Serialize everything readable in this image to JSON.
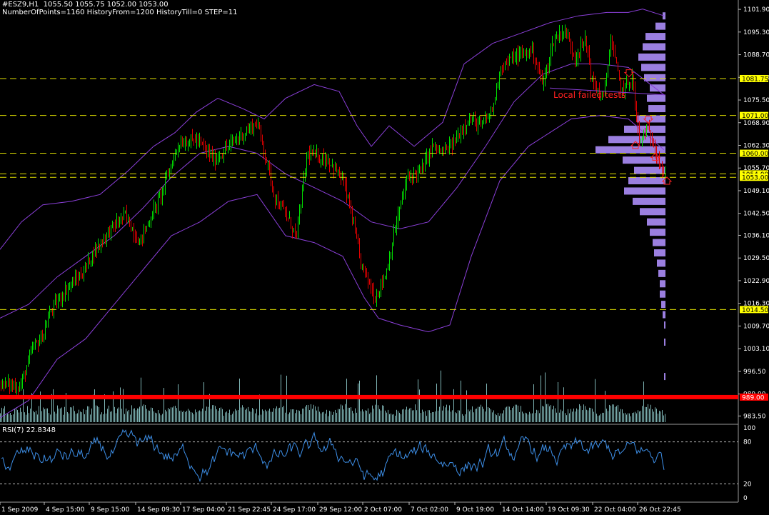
{
  "header": {
    "line1": "#ESZ9,H1  1055.50 1055.75 1052.00 1053.00",
    "line2": "NumberOfPoints=1160 HistoryFrom=1200 HistoryTill=0 STEP=11"
  },
  "rsi": {
    "label": "RSI(7) 22.8348",
    "ticks": [
      100,
      80,
      20,
      0
    ],
    "levels": [
      80,
      20
    ]
  },
  "annotation": {
    "text": "Local failed tests"
  },
  "colors": {
    "background": "#000000",
    "bull": "#00e000",
    "bear": "#e00000",
    "volume": "#7fb5b5",
    "profile": "#9b7fe0",
    "bands": "#8a3fd8",
    "rsi_line": "#3d8fe8",
    "level_line": "#e0e000",
    "support": "#ff0000"
  },
  "chart_data": {
    "type": "candlestick",
    "price_ticks": [
      "1101.90",
      "1095.30",
      "1088.70",
      "1082.10",
      "1075.50",
      "1068.90",
      "1062.30",
      "1055.70",
      "1049.10",
      "1042.50",
      "1036.10",
      "1029.50",
      "1022.90",
      "1016.30",
      "1009.70",
      "1003.10",
      "996.50",
      "989.90",
      "983.50"
    ],
    "ylim": [
      981.5,
      1104.0
    ],
    "date_ticks": [
      "1 Sep 2009",
      "4 Sep 15:00",
      "9 Sep 15:00",
      "14 Sep 09:30",
      "17 Sep 04:00",
      "21 Sep 22:45",
      "24 Sep 17:00",
      "29 Sep 12:00",
      "2 Oct 07:00",
      "7 Oct 02:00",
      "9 Oct 19:00",
      "14 Oct 14:00",
      "19 Oct 09:30",
      "22 Oct 04:00",
      "26 Oct 22:45"
    ],
    "level_lines": [
      {
        "value": 1081.75,
        "label": "1081.75"
      },
      {
        "value": 1071.0,
        "label": "1071.00"
      },
      {
        "value": 1060.0,
        "label": "1060.00"
      },
      {
        "value": 1054.0,
        "label": "1054.00"
      },
      {
        "value": 1053.0,
        "label": "1053.00"
      },
      {
        "value": 1014.5,
        "label": "1014.50"
      }
    ],
    "support_line": {
      "value": 989.0,
      "label": "989.00"
    },
    "path_points": [
      [
        0,
        993
      ],
      [
        28,
        992
      ],
      [
        45,
        1003
      ],
      [
        60,
        1007
      ],
      [
        70,
        1014
      ],
      [
        95,
        1021
      ],
      [
        115,
        1025
      ],
      [
        130,
        1031
      ],
      [
        155,
        1038
      ],
      [
        175,
        1042
      ],
      [
        195,
        1034
      ],
      [
        225,
        1048
      ],
      [
        250,
        1063
      ],
      [
        275,
        1064
      ],
      [
        300,
        1058
      ],
      [
        330,
        1064
      ],
      [
        360,
        1069
      ],
      [
        375,
        1056
      ],
      [
        385,
        1047
      ],
      [
        400,
        1042
      ],
      [
        415,
        1036
      ],
      [
        430,
        1060
      ],
      [
        460,
        1058
      ],
      [
        480,
        1052
      ],
      [
        490,
        1044
      ],
      [
        505,
        1028
      ],
      [
        525,
        1018
      ],
      [
        540,
        1025
      ],
      [
        555,
        1040
      ],
      [
        570,
        1053
      ],
      [
        590,
        1055
      ],
      [
        605,
        1062
      ],
      [
        620,
        1060
      ],
      [
        635,
        1063
      ],
      [
        655,
        1070
      ],
      [
        675,
        1068
      ],
      [
        690,
        1073
      ],
      [
        700,
        1085
      ],
      [
        720,
        1088
      ],
      [
        745,
        1090
      ],
      [
        760,
        1080
      ],
      [
        775,
        1093
      ],
      [
        790,
        1096
      ],
      [
        805,
        1088
      ],
      [
        820,
        1093
      ],
      [
        830,
        1080
      ],
      [
        845,
        1076
      ],
      [
        855,
        1093
      ],
      [
        870,
        1078
      ],
      [
        885,
        1082
      ],
      [
        895,
        1063
      ],
      [
        905,
        1067
      ],
      [
        915,
        1063
      ],
      [
        930,
        1053
      ]
    ],
    "bb_upper": [
      [
        0,
        1032
      ],
      [
        30,
        1040
      ],
      [
        60,
        1045
      ],
      [
        100,
        1046
      ],
      [
        140,
        1048
      ],
      [
        180,
        1055
      ],
      [
        215,
        1062
      ],
      [
        245,
        1066
      ],
      [
        275,
        1072
      ],
      [
        305,
        1076
      ],
      [
        340,
        1073
      ],
      [
        370,
        1070
      ],
      [
        400,
        1076
      ],
      [
        440,
        1080
      ],
      [
        475,
        1078
      ],
      [
        500,
        1068
      ],
      [
        520,
        1062
      ],
      [
        545,
        1068
      ],
      [
        580,
        1062
      ],
      [
        620,
        1069
      ],
      [
        650,
        1086
      ],
      [
        690,
        1092
      ],
      [
        730,
        1095
      ],
      [
        770,
        1098
      ],
      [
        810,
        1100
      ],
      [
        850,
        1101
      ],
      [
        880,
        1101
      ],
      [
        900,
        1102
      ],
      [
        930,
        1100
      ]
    ],
    "bb_mid": [
      [
        0,
        1012
      ],
      [
        40,
        1016
      ],
      [
        80,
        1024
      ],
      [
        120,
        1030
      ],
      [
        160,
        1036
      ],
      [
        200,
        1044
      ],
      [
        240,
        1053
      ],
      [
        280,
        1060
      ],
      [
        320,
        1062
      ],
      [
        360,
        1060
      ],
      [
        400,
        1054
      ],
      [
        440,
        1050
      ],
      [
        480,
        1046
      ],
      [
        520,
        1040
      ],
      [
        560,
        1038
      ],
      [
        600,
        1040
      ],
      [
        640,
        1050
      ],
      [
        680,
        1062
      ],
      [
        720,
        1075
      ],
      [
        760,
        1083
      ],
      [
        800,
        1086
      ],
      [
        840,
        1086
      ],
      [
        880,
        1085
      ],
      [
        930,
        1077
      ]
    ],
    "bb_lower": [
      [
        0,
        983
      ],
      [
        40,
        988
      ],
      [
        80,
        1000
      ],
      [
        120,
        1006
      ],
      [
        160,
        1016
      ],
      [
        200,
        1026
      ],
      [
        240,
        1036
      ],
      [
        280,
        1040
      ],
      [
        320,
        1046
      ],
      [
        360,
        1048
      ],
      [
        400,
        1036
      ],
      [
        440,
        1034
      ],
      [
        480,
        1030
      ],
      [
        510,
        1018
      ],
      [
        530,
        1012
      ],
      [
        560,
        1010
      ],
      [
        600,
        1008
      ],
      [
        630,
        1010
      ],
      [
        660,
        1030
      ],
      [
        700,
        1052
      ],
      [
        740,
        1062
      ],
      [
        770,
        1066
      ],
      [
        800,
        1070
      ],
      [
        840,
        1071
      ],
      [
        880,
        1070
      ],
      [
        930,
        1061
      ]
    ],
    "profile": [
      {
        "price": 1100.0,
        "width": 4
      },
      {
        "price": 1097.0,
        "width": 14
      },
      {
        "price": 1094.0,
        "width": 28
      },
      {
        "price": 1091.0,
        "width": 32
      },
      {
        "price": 1088.0,
        "width": 38
      },
      {
        "price": 1085.0,
        "width": 34
      },
      {
        "price": 1082.0,
        "width": 30
      },
      {
        "price": 1079.0,
        "width": 22
      },
      {
        "price": 1076.0,
        "width": 26
      },
      {
        "price": 1073.0,
        "width": 24
      },
      {
        "price": 1070.0,
        "width": 40
      },
      {
        "price": 1067.0,
        "width": 58
      },
      {
        "price": 1064.0,
        "width": 80
      },
      {
        "price": 1061.0,
        "width": 98
      },
      {
        "price": 1058.0,
        "width": 60
      },
      {
        "price": 1055.0,
        "width": 44
      },
      {
        "price": 1052.0,
        "width": 52
      },
      {
        "price": 1049.0,
        "width": 58
      },
      {
        "price": 1046.0,
        "width": 46
      },
      {
        "price": 1043.0,
        "width": 36
      },
      {
        "price": 1040.0,
        "width": 26
      },
      {
        "price": 1037.0,
        "width": 22
      },
      {
        "price": 1034.0,
        "width": 18
      },
      {
        "price": 1031.0,
        "width": 16
      },
      {
        "price": 1028.0,
        "width": 12
      },
      {
        "price": 1025.0,
        "width": 10
      },
      {
        "price": 1022.0,
        "width": 8
      },
      {
        "price": 1019.0,
        "width": 8
      },
      {
        "price": 1016.0,
        "width": 6
      },
      {
        "price": 1013.0,
        "width": 4
      },
      {
        "price": 1010.0,
        "width": 2
      },
      {
        "price": 1005.0,
        "width": 2
      },
      {
        "price": 995.0,
        "width": 2
      }
    ],
    "markers": [
      {
        "x": 881,
        "price": 1083.5,
        "dir": "down"
      },
      {
        "x": 908,
        "price": 1070.0,
        "dir": "down"
      },
      {
        "x": 890,
        "price": 1062.2,
        "dir": "up"
      },
      {
        "x": 918,
        "price": 1058.8,
        "dir": "up"
      },
      {
        "x": 934,
        "price": 1051.8,
        "dir": "up"
      }
    ]
  }
}
